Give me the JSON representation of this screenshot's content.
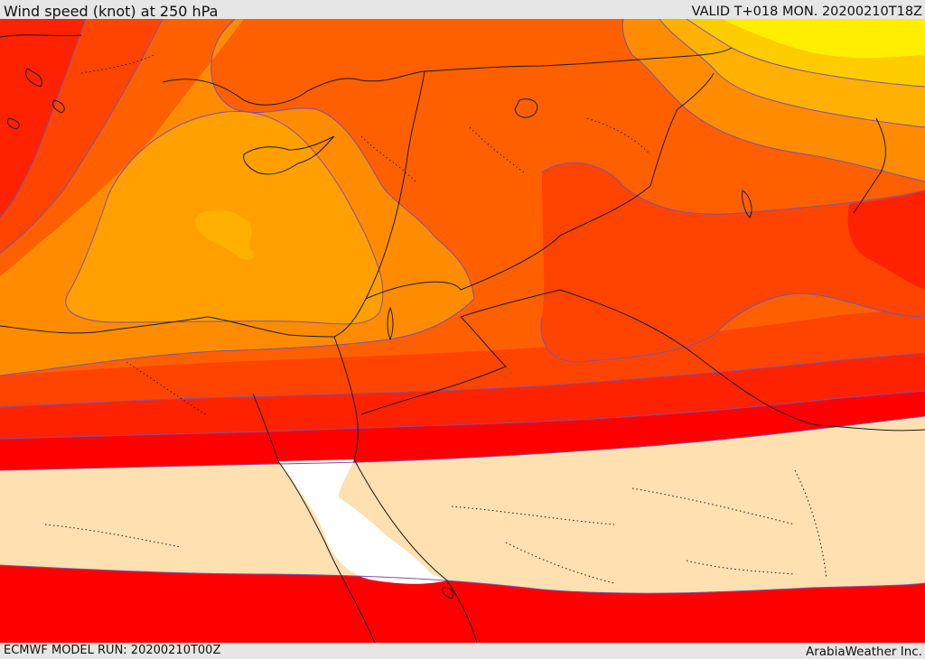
{
  "header": {
    "title": "Wind speed (knot) at 250 hPa",
    "valid": "VALID T+018 MON. 20200210T18Z"
  },
  "footer": {
    "model_run": "ECMWF MODEL RUN: 20200210T00Z",
    "credit": "ArabiaWeather Inc."
  },
  "colors": {
    "band_lightest": "#ffe0b0",
    "band_red": "#fe0000",
    "band_red_orange": "#fe2200",
    "band_orange_red_1": "#fe4400",
    "band_orange_red_2": "#fe6000",
    "band_orange": "#ff8c00",
    "band_light_orange": "#ffa000",
    "band_amber": "#ffb000",
    "band_yellow_orange": "#ffcc00",
    "band_yellow": "#ffee00",
    "sea_white": "#ffffff",
    "contour_line": "#7e51a8",
    "coast_line": "#1a1a1a"
  }
}
